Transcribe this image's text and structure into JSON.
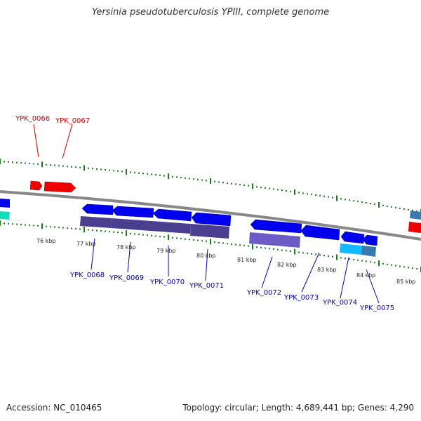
{
  "header": {
    "title": "Yersinia pseudotuberculosis YPIII, complete genome"
  },
  "footer": {
    "accession": "Accession: NC_010465",
    "topology": "Topology: circular; Length: 4,689,441 bp; Genes: 4,290"
  },
  "ruler": {
    "unit": "kbp",
    "labels": [
      "76 kbp",
      "77 kbp",
      "78 kbp",
      "79 kbp",
      "80 kbp",
      "81 kbp",
      "82 kbp",
      "83 kbp",
      "84 kbp",
      "85 kbp"
    ]
  },
  "genes": {
    "top_strand": [
      "YPK_0066",
      "YPK_0067"
    ],
    "bottom_strand": [
      "YPK_0068",
      "YPK_0069",
      "YPK_0070",
      "YPK_0071",
      "YPK_0072",
      "YPK_0073",
      "YPK_0074",
      "YPK_0075"
    ]
  },
  "colors": {
    "forward_label": "#cc0000",
    "reverse_label": "#0000aa",
    "gene_blue": "#0000ee",
    "gene_red": "#ee0000",
    "cds_purple": "#4a3f8f",
    "tick_green": "#1a7a1a",
    "backbone": "#888888"
  }
}
